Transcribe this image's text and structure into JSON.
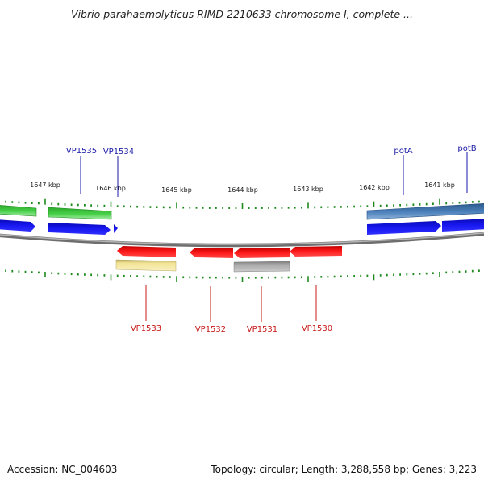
{
  "title": "Vibrio parahaemolyticus RIMD 2210633 chromosome I, complete ...",
  "footer": {
    "accession": "Accession: NC_004603",
    "summary": "Topology: circular; Length: 3,288,558 bp; Genes: 3,223"
  },
  "colors": {
    "backbone": "#8a8a8a",
    "tick": "#1e8a1e",
    "cds": "#1414e0",
    "cds_reverse": "#ee1010",
    "gene_green": "#3cc83c",
    "gene_steel": "#4a7eb8",
    "gene_yellow": "#f0e08c",
    "gene_gray": "#aaaaaa"
  },
  "scale": {
    "unit": "kbp",
    "tick_labels": [
      "1647 kbp",
      "1646 kbp",
      "1645 kbp",
      "1644 kbp",
      "1643 kbp",
      "1642 kbp",
      "1641 kbp"
    ]
  },
  "genes_forward": [
    {
      "label": "VP1535"
    },
    {
      "label": "VP1534"
    },
    {
      "label": "potA"
    },
    {
      "label": "potB"
    }
  ],
  "genes_reverse": [
    {
      "label": "VP1533"
    },
    {
      "label": "VP1532"
    },
    {
      "label": "VP1531"
    },
    {
      "label": "VP1530"
    }
  ]
}
